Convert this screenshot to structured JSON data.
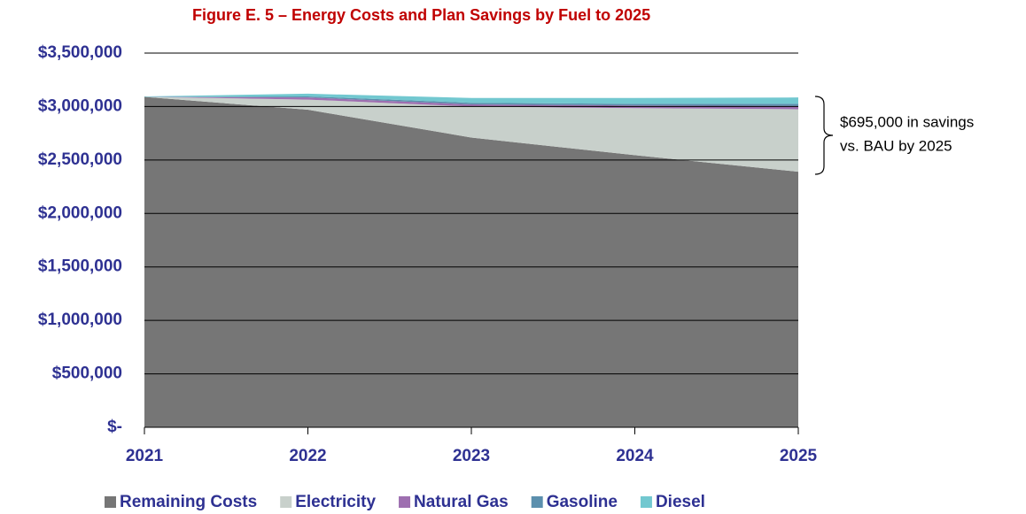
{
  "chart_data": {
    "type": "stacked_area",
    "title": "Figure E. 5 – Energy Costs and Plan Savings by Fuel to 2025",
    "x": [
      2021,
      2022,
      2023,
      2024,
      2025
    ],
    "xlim": [
      2021,
      2025
    ],
    "xticks": [
      2021,
      2022,
      2023,
      2024,
      2025
    ],
    "ylim": [
      0,
      3500000
    ],
    "yticks": [
      {
        "value": 0,
        "label": "$-"
      },
      {
        "value": 500000,
        "label": "$500,000"
      },
      {
        "value": 1000000,
        "label": "$1,000,000"
      },
      {
        "value": 1500000,
        "label": "$1,500,000"
      },
      {
        "value": 2000000,
        "label": "$2,000,000"
      },
      {
        "value": 2500000,
        "label": "$2,500,000"
      },
      {
        "value": 3000000,
        "label": "$3,000,000"
      },
      {
        "value": 3500000,
        "label": "$3,500,000"
      }
    ],
    "grid": true,
    "legend": "bottom",
    "series": [
      {
        "name": "Remaining Costs",
        "color": "#767676",
        "values": [
          3090000,
          2970000,
          2710000,
          2545000,
          2390000
        ]
      },
      {
        "name": "Electricity",
        "color": "#c8d0cb",
        "values": [
          0,
          95000,
          290000,
          440000,
          585000
        ]
      },
      {
        "name": "Natural Gas",
        "color": "#9e6fb0",
        "values": [
          0,
          20000,
          20000,
          25000,
          30000
        ]
      },
      {
        "name": "Gasoline",
        "color": "#5b8fad",
        "values": [
          0,
          10000,
          15000,
          15000,
          20000
        ]
      },
      {
        "name": "Diesel",
        "color": "#72c8d0",
        "values": [
          5000,
          25000,
          45000,
          55000,
          60000
        ]
      }
    ],
    "annotation": [
      "$695,000 in savings",
      "vs. BAU by 2025"
    ]
  }
}
